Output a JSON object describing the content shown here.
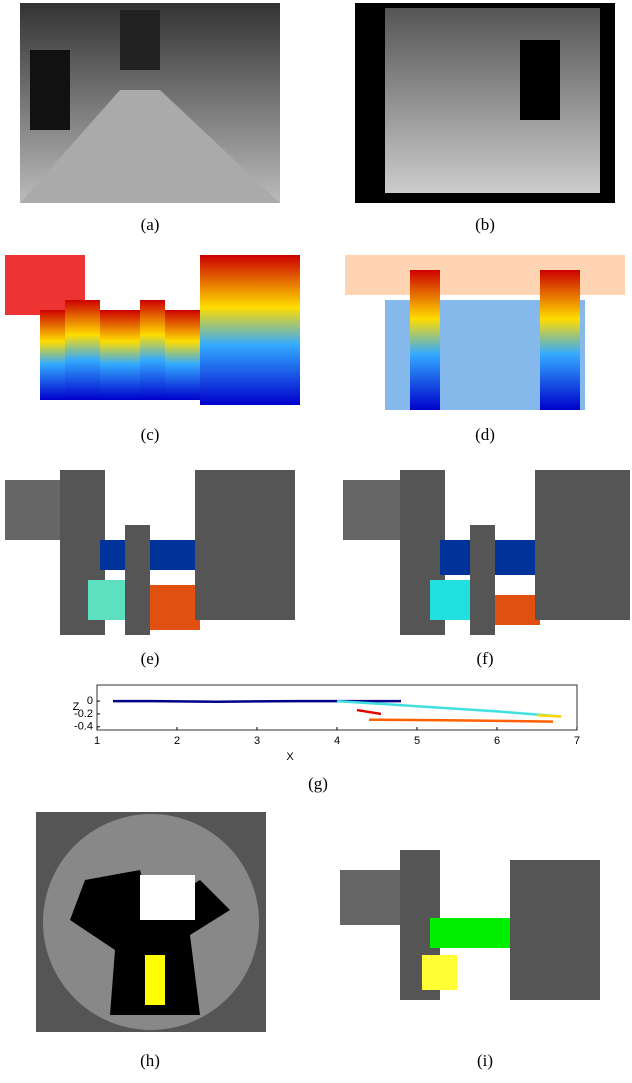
{
  "panels": [
    "(a)",
    "(b)",
    "(c)",
    "(d)",
    "(e)",
    "(f)",
    "(g)",
    "(h)",
    "(i)"
  ],
  "chart_data": {
    "type": "line",
    "x_label": "X",
    "y_label": "Z",
    "xlim": [
      1,
      7
    ],
    "ylim": [
      -0.45,
      0.25
    ],
    "xticks": [
      1,
      2,
      3,
      4,
      5,
      6,
      7
    ],
    "yticks": [
      0,
      -0.2,
      -0.4
    ],
    "series": [
      {
        "color": "#00008b",
        "x": [
          1.2,
          1.7,
          2.5,
          3.5,
          4.3,
          4.8
        ],
        "values": [
          0,
          0,
          -0.01,
          0,
          0,
          0
        ]
      },
      {
        "color": "#40e0e0",
        "x": [
          4.0,
          5.0,
          6.0,
          6.8
        ],
        "values": [
          0,
          -0.08,
          -0.16,
          -0.24
        ]
      },
      {
        "color": "#ffd700",
        "x": [
          6.5,
          6.8
        ],
        "values": [
          -0.22,
          -0.24
        ]
      },
      {
        "color": "#e00000",
        "x": [
          4.25,
          4.55
        ],
        "values": [
          -0.14,
          -0.2
        ]
      },
      {
        "color": "#ff6000",
        "x": [
          4.4,
          5.5,
          6.7
        ],
        "values": [
          -0.29,
          -0.3,
          -0.32
        ]
      }
    ]
  }
}
